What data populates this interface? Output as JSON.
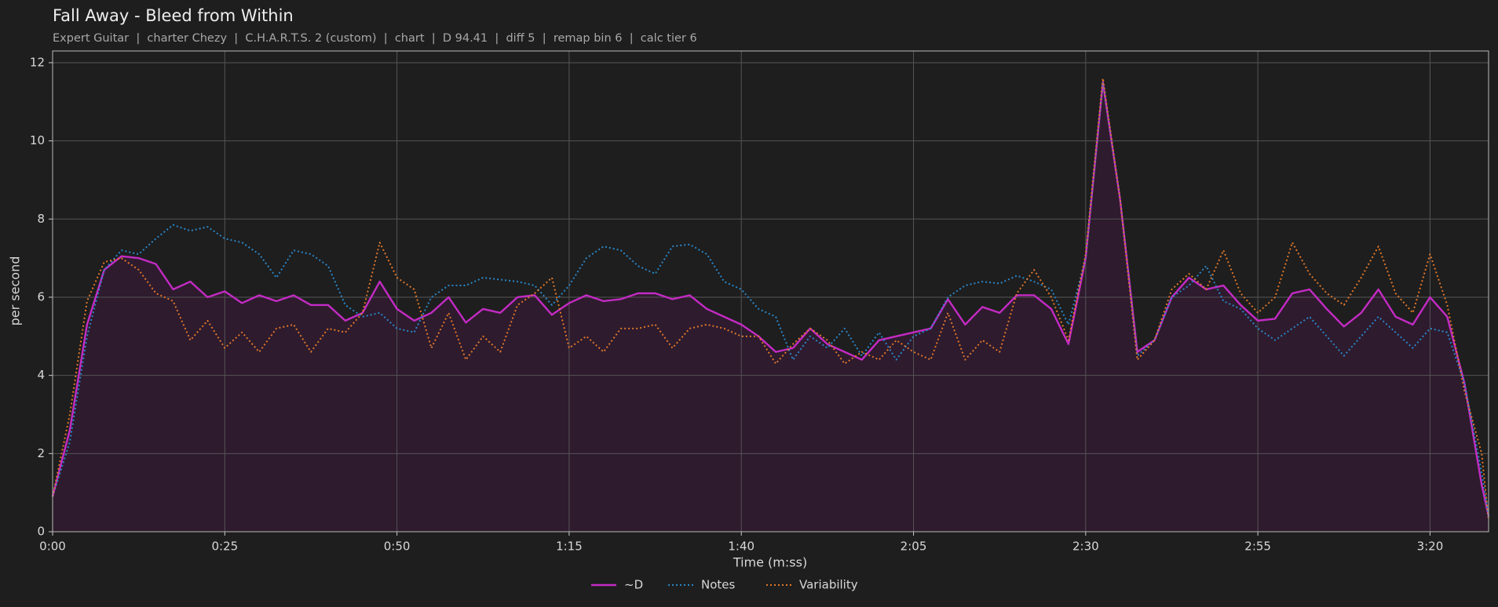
{
  "chart_data": {
    "type": "line",
    "title": "Fall Away - Bleed from Within",
    "subtitle": "Expert Guitar  |  charter Chezy  |  C.H.A.R.T.S. 2 (custom)  |  chart  |  D 94.41  |  diff 5  |  remap bin 6  |  calc tier 6",
    "x_label": "Time (m:ss)",
    "y_label": "per second",
    "x": [
      0,
      2.5,
      5,
      7.5,
      10,
      12.5,
      15,
      17.5,
      20,
      22.5,
      25,
      27.5,
      30,
      32.5,
      35,
      37.5,
      40,
      42.5,
      45,
      47.5,
      50,
      52.5,
      55,
      57.5,
      60,
      62.5,
      65,
      67.5,
      70,
      72.5,
      75,
      77.5,
      80,
      82.5,
      85,
      87.5,
      90,
      92.5,
      95,
      97.5,
      100,
      102.5,
      105,
      107.5,
      110,
      112.5,
      115,
      117.5,
      120,
      122.5,
      125,
      127.5,
      130,
      132.5,
      135,
      137.5,
      140,
      142.5,
      145,
      147.5,
      150,
      152.5,
      155,
      157.5,
      160,
      162.5,
      165,
      167.5,
      170,
      172.5,
      175,
      177.5,
      180,
      182.5,
      185,
      187.5,
      190,
      192.5,
      195,
      197.5,
      200,
      202.5,
      205,
      207.5,
      208.5
    ],
    "series": [
      {
        "name": "~D",
        "color": "#c42bc4",
        "style": "solid",
        "fill": "#2e1b2e",
        "values": [
          0.9,
          2.6,
          5.3,
          6.7,
          7.05,
          7.0,
          6.85,
          6.2,
          6.4,
          6.0,
          6.15,
          5.85,
          6.05,
          5.9,
          6.05,
          5.8,
          5.8,
          5.4,
          5.6,
          6.4,
          5.7,
          5.4,
          5.6,
          6.0,
          5.35,
          5.7,
          5.6,
          6.0,
          6.05,
          5.55,
          5.85,
          6.05,
          5.9,
          5.95,
          6.1,
          6.1,
          5.95,
          6.05,
          5.7,
          5.5,
          5.3,
          5.0,
          4.6,
          4.7,
          5.2,
          4.8,
          4.6,
          4.4,
          4.9,
          5.0,
          5.1,
          5.2,
          5.95,
          5.3,
          5.75,
          5.6,
          6.05,
          6.05,
          5.7,
          4.8,
          7.0,
          11.5,
          8.5,
          4.6,
          4.9,
          6.0,
          6.5,
          6.2,
          6.3,
          5.8,
          5.4,
          5.45,
          6.1,
          6.2,
          5.7,
          5.25,
          5.6,
          6.2,
          5.5,
          5.3,
          6.0,
          5.5,
          3.8,
          1.2,
          0.4
        ]
      },
      {
        "name": "Notes",
        "color": "#2a86c8",
        "style": "dotted",
        "values": [
          0.9,
          2.3,
          5.0,
          6.7,
          7.2,
          7.1,
          7.5,
          7.85,
          7.7,
          7.8,
          7.5,
          7.4,
          7.1,
          6.5,
          7.2,
          7.1,
          6.8,
          5.8,
          5.5,
          5.6,
          5.2,
          5.1,
          6.0,
          6.3,
          6.3,
          6.5,
          6.45,
          6.4,
          6.3,
          5.8,
          6.3,
          7.0,
          7.3,
          7.2,
          6.8,
          6.6,
          7.3,
          7.35,
          7.1,
          6.4,
          6.2,
          5.7,
          5.5,
          4.4,
          5.0,
          4.7,
          5.2,
          4.5,
          5.1,
          4.4,
          5.0,
          5.2,
          6.0,
          6.3,
          6.4,
          6.35,
          6.55,
          6.4,
          6.2,
          5.3,
          7.0,
          11.5,
          8.5,
          4.5,
          4.9,
          6.0,
          6.3,
          6.8,
          5.9,
          5.7,
          5.2,
          4.9,
          5.2,
          5.5,
          5.0,
          4.5,
          5.0,
          5.5,
          5.1,
          4.7,
          5.2,
          5.1,
          3.8,
          1.5,
          0.4
        ]
      },
      {
        "name": "Variability",
        "color": "#e0762a",
        "style": "dotted",
        "values": [
          0.9,
          3.0,
          5.9,
          6.9,
          7.0,
          6.7,
          6.1,
          5.9,
          4.9,
          5.4,
          4.7,
          5.1,
          4.6,
          5.2,
          5.3,
          4.6,
          5.2,
          5.1,
          5.6,
          7.4,
          6.5,
          6.2,
          4.7,
          5.6,
          4.4,
          5.0,
          4.6,
          5.8,
          6.1,
          6.5,
          4.7,
          5.0,
          4.6,
          5.2,
          5.2,
          5.3,
          4.7,
          5.2,
          5.3,
          5.2,
          5.0,
          5.0,
          4.3,
          4.8,
          5.2,
          4.9,
          4.3,
          4.6,
          4.4,
          4.9,
          4.6,
          4.4,
          5.6,
          4.4,
          4.9,
          4.6,
          6.1,
          6.7,
          6.0,
          4.9,
          7.1,
          11.6,
          8.5,
          4.4,
          4.9,
          6.2,
          6.6,
          6.2,
          7.2,
          6.1,
          5.6,
          6.0,
          7.4,
          6.6,
          6.1,
          5.8,
          6.5,
          7.3,
          6.1,
          5.6,
          7.1,
          5.8,
          3.6,
          2.0,
          0.3
        ]
      }
    ],
    "xlim": [
      0,
      208.5
    ],
    "ylim": [
      0,
      12.3
    ],
    "xticks": [
      {
        "value": 0,
        "label": "0:00"
      },
      {
        "value": 25,
        "label": "0:25"
      },
      {
        "value": 50,
        "label": "0:50"
      },
      {
        "value": 75,
        "label": "1:15"
      },
      {
        "value": 100,
        "label": "1:40"
      },
      {
        "value": 125,
        "label": "2:05"
      },
      {
        "value": 150,
        "label": "2:30"
      },
      {
        "value": 175,
        "label": "2:55"
      },
      {
        "value": 200,
        "label": "3:20"
      }
    ],
    "yticks": [
      0,
      2,
      4,
      6,
      8,
      10,
      12
    ],
    "grid": true,
    "legend": "bottom"
  }
}
